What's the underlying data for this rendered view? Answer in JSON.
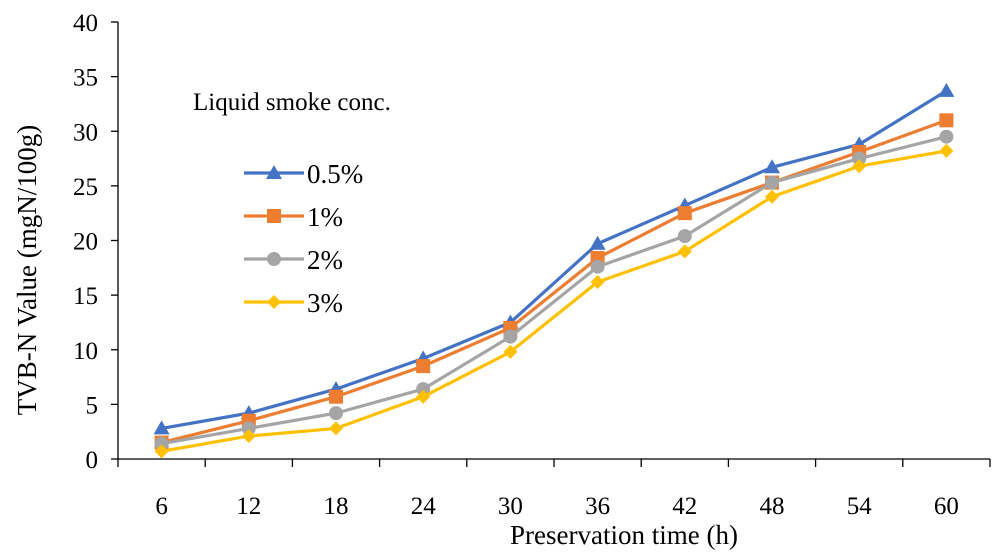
{
  "chart_data": {
    "type": "line",
    "title": "",
    "xlabel": "Preservation time (h)",
    "ylabel": "TVB-N Value (mgN/100g)",
    "categories": [
      "6",
      "12",
      "18",
      "24",
      "30",
      "36",
      "42",
      "48",
      "54",
      "60"
    ],
    "ylim": [
      0,
      40
    ],
    "yticks": [
      0,
      5,
      10,
      15,
      20,
      25,
      30,
      35,
      40
    ],
    "grid": false,
    "legend": {
      "title": "Liquid smoke conc.",
      "position": "top-left"
    },
    "series": [
      {
        "name": "0.5%",
        "color": "#4472C4",
        "marker": "triangle",
        "values": [
          2.8,
          4.2,
          6.4,
          9.2,
          12.5,
          19.7,
          23.2,
          26.7,
          28.8,
          33.7
        ]
      },
      {
        "name": "1%",
        "color": "#ED7D31",
        "marker": "square",
        "values": [
          1.5,
          3.5,
          5.7,
          8.5,
          12.0,
          18.4,
          22.5,
          25.3,
          28.1,
          31.0
        ]
      },
      {
        "name": "2%",
        "color": "#A5A5A5",
        "marker": "circle",
        "values": [
          1.4,
          2.8,
          4.2,
          6.4,
          11.2,
          17.6,
          20.4,
          25.3,
          27.5,
          29.5
        ]
      },
      {
        "name": "3%",
        "color": "#FFC000",
        "marker": "diamond",
        "values": [
          0.7,
          2.1,
          2.8,
          5.7,
          9.8,
          16.2,
          19.0,
          24.0,
          26.8,
          28.2
        ]
      }
    ]
  }
}
